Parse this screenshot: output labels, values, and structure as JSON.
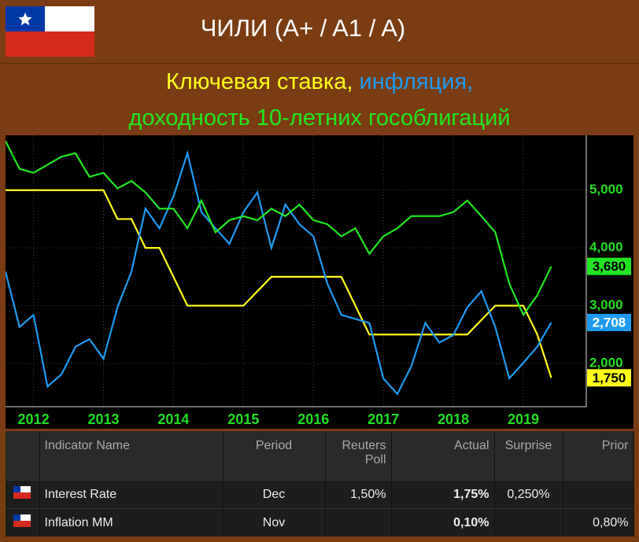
{
  "header": {
    "title": "ЧИЛИ (A+ / A1 / A)"
  },
  "chart_data": {
    "type": "line",
    "x": [
      2011.6,
      2011.8,
      2012.0,
      2012.2,
      2012.4,
      2012.6,
      2012.8,
      2013.0,
      2013.2,
      2013.4,
      2013.6,
      2013.8,
      2014.0,
      2014.2,
      2014.4,
      2014.6,
      2014.8,
      2015.0,
      2015.2,
      2015.4,
      2015.6,
      2015.8,
      2016.0,
      2016.2,
      2016.4,
      2016.6,
      2016.8,
      2017.0,
      2017.2,
      2017.4,
      2017.6,
      2017.8,
      2018.0,
      2018.2,
      2018.4,
      2018.6,
      2018.8,
      2019.0,
      2019.2,
      2019.4
    ],
    "series": [
      {
        "name": "Ключевая ставка,",
        "color": "#ffff1a",
        "values": [
          5,
          5,
          5,
          5,
          5,
          5,
          5,
          5,
          4.5,
          4.5,
          4,
          4,
          3.5,
          3,
          3,
          3,
          3,
          3,
          3.25,
          3.5,
          3.5,
          3.5,
          3.5,
          3.5,
          3.5,
          3,
          2.5,
          2.5,
          2.5,
          2.5,
          2.5,
          2.5,
          2.5,
          2.5,
          2.75,
          3,
          3,
          3,
          2.5,
          1.75
        ],
        "value_labels": [
          null,
          null,
          null,
          null,
          null,
          null,
          null,
          null,
          null,
          null,
          null,
          null,
          null,
          null,
          null,
          null,
          null,
          null,
          null,
          null,
          null,
          null,
          null,
          null,
          null,
          null,
          null,
          null,
          null,
          null,
          null,
          null,
          null,
          null,
          null,
          null,
          null,
          null,
          null,
          "1,750"
        ]
      },
      {
        "name": "инфляция,",
        "color": "#1e9bf0",
        "values": [
          3.59,
          2.63,
          2.84,
          1.6,
          1.81,
          2.29,
          2.42,
          2.08,
          2.97,
          3.59,
          4.68,
          4.34,
          4.89,
          5.64,
          4.62,
          4.34,
          4.07,
          4.62,
          4.96,
          4.0,
          4.75,
          4.41,
          4.2,
          3.38,
          2.84,
          2.77,
          2.7,
          1.74,
          1.47,
          1.95,
          2.7,
          2.36,
          2.49,
          2.97,
          3.25,
          2.63,
          1.74,
          2.01,
          2.29,
          2.708
        ],
        "value_labels": [
          null,
          null,
          null,
          null,
          null,
          null,
          null,
          null,
          null,
          null,
          null,
          null,
          null,
          null,
          null,
          null,
          null,
          null,
          null,
          null,
          null,
          null,
          null,
          null,
          null,
          null,
          null,
          null,
          null,
          null,
          null,
          null,
          null,
          null,
          null,
          null,
          null,
          null,
          null,
          "2,708"
        ]
      },
      {
        "name": "доходность 10-летних гособлигаций",
        "color": "#22e622",
        "values": [
          5.85,
          5.37,
          5.3,
          5.44,
          5.58,
          5.64,
          5.23,
          5.3,
          5.03,
          5.16,
          4.96,
          4.68,
          4.68,
          4.34,
          4.82,
          4.27,
          4.48,
          4.55,
          4.48,
          4.68,
          4.55,
          4.75,
          4.48,
          4.41,
          4.2,
          4.34,
          3.9,
          4.2,
          4.34,
          4.55,
          4.55,
          4.55,
          4.62,
          4.82,
          4.55,
          4.27,
          3.38,
          2.84,
          3.18,
          3.68
        ],
        "value_labels": [
          null,
          null,
          null,
          null,
          null,
          null,
          null,
          null,
          null,
          null,
          null,
          null,
          null,
          null,
          null,
          null,
          null,
          null,
          null,
          null,
          null,
          null,
          null,
          null,
          null,
          null,
          null,
          null,
          null,
          null,
          null,
          null,
          null,
          null,
          null,
          null,
          null,
          null,
          null,
          "3,680"
        ]
      }
    ],
    "xlim": [
      2011.6,
      2019.9
    ],
    "xticks": [
      2012,
      2013,
      2014,
      2015,
      2016,
      2017,
      2018,
      2019
    ],
    "ylim": [
      1.25,
      5.95
    ],
    "yticks": [
      {
        "value": 2,
        "label": "2,000"
      },
      {
        "value": 3,
        "label": "3,000"
      },
      {
        "value": 4,
        "label": "4,000"
      },
      {
        "value": 5,
        "label": "5,000"
      }
    ],
    "axis_color": "#22dd22",
    "grid": true
  },
  "table": {
    "columns": [
      "Indicator Name",
      "Period",
      "Reuters Poll",
      "Actual",
      "Surprise",
      "Prior"
    ],
    "rows": [
      [
        "Interest Rate",
        "Dec",
        "1,50%",
        "1,75%",
        "0,250%",
        null
      ],
      [
        "Inflation MM",
        "Nov",
        null,
        "0,10%",
        null,
        "0,80%"
      ]
    ]
  }
}
